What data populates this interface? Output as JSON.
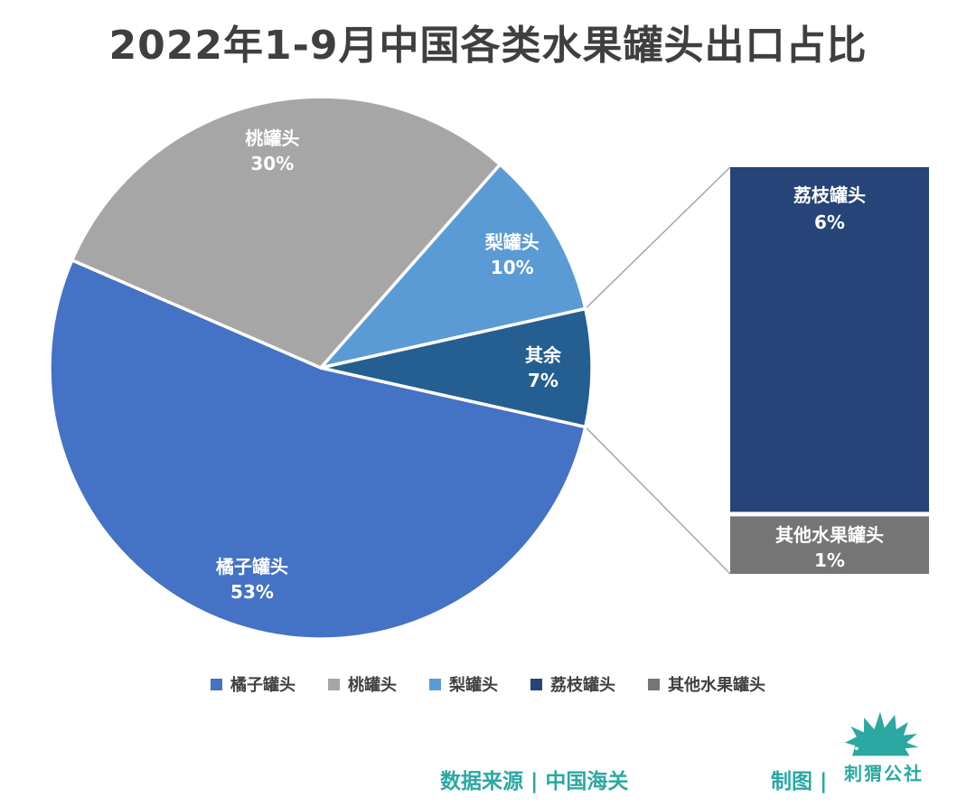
{
  "title": "2022年1-9月中国各类水果罐头出口占比",
  "chart_data": {
    "type": "bar-of-pie",
    "title": "2022年1-9月中国各类水果罐头出口占比",
    "pie": {
      "slices": [
        {
          "label": "橘子罐头",
          "value": 53,
          "display": "53%",
          "color": "#4472C4"
        },
        {
          "label": "桃罐头",
          "value": 30,
          "display": "30%",
          "color": "#A6A6A6"
        },
        {
          "label": "梨罐头",
          "value": 10,
          "display": "10%",
          "color": "#5B9BD5"
        },
        {
          "label": "其余",
          "value": 7,
          "display": "7%",
          "color": "#255E91"
        }
      ],
      "start_angle_deg": 102.6,
      "label_radius": 0.82
    },
    "breakout_bar": {
      "source_slice": "其余",
      "segments": [
        {
          "label": "荔枝罐头",
          "value": 6,
          "display": "6%",
          "color": "#264478"
        },
        {
          "label": "其他水果罐头",
          "value": 1,
          "display": "1%",
          "color": "#757575"
        }
      ]
    },
    "legend": [
      {
        "label": "橘子罐头",
        "color": "#4472C4"
      },
      {
        "label": "桃罐头",
        "color": "#A6A6A6"
      },
      {
        "label": "梨罐头",
        "color": "#5B9BD5"
      },
      {
        "label": "荔枝罐头",
        "color": "#264478"
      },
      {
        "label": "其他水果罐头",
        "color": "#757575"
      }
    ],
    "legend_position": "bottom",
    "connector_color": "#A6A6A6"
  },
  "footer": {
    "source_label": "数据来源 | 中国海关",
    "credit_label": "制图 |",
    "logo_text": "刺猬公社",
    "accent_color": "#2BA8A2"
  }
}
